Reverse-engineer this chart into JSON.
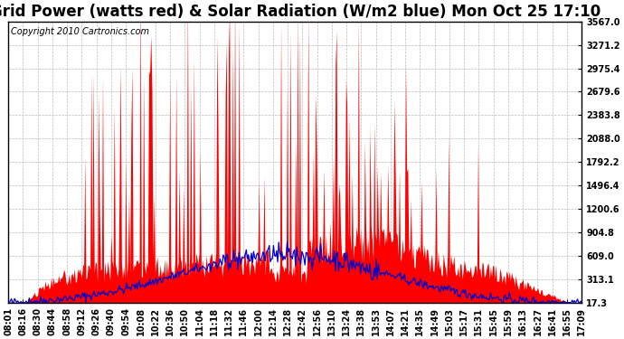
{
  "title": "Grid Power (watts red) & Solar Radiation (W/m2 blue) Mon Oct 25 17:10",
  "copyright": "Copyright 2010 Cartronics.com",
  "background_color": "#ffffff",
  "plot_bg_color": "#ffffff",
  "grid_color": "#bbbbbb",
  "red_color": "#ff0000",
  "blue_color": "#0000cc",
  "ymin": 17.3,
  "ymax": 3567.0,
  "yticks": [
    17.3,
    313.1,
    609.0,
    904.8,
    1200.6,
    1496.4,
    1792.2,
    2088.0,
    2383.8,
    2679.6,
    2975.4,
    3271.2,
    3567.0
  ],
  "xtick_labels": [
    "08:01",
    "08:16",
    "08:30",
    "08:44",
    "08:58",
    "09:12",
    "09:26",
    "09:40",
    "09:54",
    "10:08",
    "10:22",
    "10:36",
    "10:50",
    "11:04",
    "11:18",
    "11:32",
    "11:46",
    "12:00",
    "12:14",
    "12:28",
    "12:42",
    "12:56",
    "13:10",
    "13:24",
    "13:38",
    "13:53",
    "14:07",
    "14:21",
    "14:35",
    "14:49",
    "15:03",
    "15:17",
    "15:31",
    "15:45",
    "15:59",
    "16:13",
    "16:27",
    "16:41",
    "16:55",
    "17:09"
  ],
  "title_fontsize": 12,
  "tick_fontsize": 7,
  "copyright_fontsize": 7
}
